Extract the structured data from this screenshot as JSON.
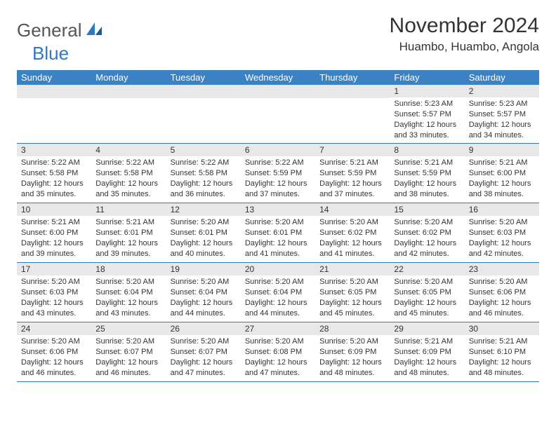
{
  "brand": {
    "part1": "General",
    "part2": "Blue"
  },
  "title": "November 2024",
  "location": "Huambo, Huambo, Angola",
  "colors": {
    "header_bg": "#3b82c4",
    "daynum_bg": "#e8e8e8",
    "border": "#2f79c2",
    "logo_blue": "#2f79c2"
  },
  "dayNames": [
    "Sunday",
    "Monday",
    "Tuesday",
    "Wednesday",
    "Thursday",
    "Friday",
    "Saturday"
  ],
  "weeks": [
    [
      {
        "blank": true
      },
      {
        "blank": true
      },
      {
        "blank": true
      },
      {
        "blank": true
      },
      {
        "blank": true
      },
      {
        "day": "1",
        "sunrise": "Sunrise: 5:23 AM",
        "sunset": "Sunset: 5:57 PM",
        "daylight": "Daylight: 12 hours and 33 minutes."
      },
      {
        "day": "2",
        "sunrise": "Sunrise: 5:23 AM",
        "sunset": "Sunset: 5:57 PM",
        "daylight": "Daylight: 12 hours and 34 minutes."
      }
    ],
    [
      {
        "day": "3",
        "sunrise": "Sunrise: 5:22 AM",
        "sunset": "Sunset: 5:58 PM",
        "daylight": "Daylight: 12 hours and 35 minutes."
      },
      {
        "day": "4",
        "sunrise": "Sunrise: 5:22 AM",
        "sunset": "Sunset: 5:58 PM",
        "daylight": "Daylight: 12 hours and 35 minutes."
      },
      {
        "day": "5",
        "sunrise": "Sunrise: 5:22 AM",
        "sunset": "Sunset: 5:58 PM",
        "daylight": "Daylight: 12 hours and 36 minutes."
      },
      {
        "day": "6",
        "sunrise": "Sunrise: 5:22 AM",
        "sunset": "Sunset: 5:59 PM",
        "daylight": "Daylight: 12 hours and 37 minutes."
      },
      {
        "day": "7",
        "sunrise": "Sunrise: 5:21 AM",
        "sunset": "Sunset: 5:59 PM",
        "daylight": "Daylight: 12 hours and 37 minutes."
      },
      {
        "day": "8",
        "sunrise": "Sunrise: 5:21 AM",
        "sunset": "Sunset: 5:59 PM",
        "daylight": "Daylight: 12 hours and 38 minutes."
      },
      {
        "day": "9",
        "sunrise": "Sunrise: 5:21 AM",
        "sunset": "Sunset: 6:00 PM",
        "daylight": "Daylight: 12 hours and 38 minutes."
      }
    ],
    [
      {
        "day": "10",
        "sunrise": "Sunrise: 5:21 AM",
        "sunset": "Sunset: 6:00 PM",
        "daylight": "Daylight: 12 hours and 39 minutes."
      },
      {
        "day": "11",
        "sunrise": "Sunrise: 5:21 AM",
        "sunset": "Sunset: 6:01 PM",
        "daylight": "Daylight: 12 hours and 39 minutes."
      },
      {
        "day": "12",
        "sunrise": "Sunrise: 5:20 AM",
        "sunset": "Sunset: 6:01 PM",
        "daylight": "Daylight: 12 hours and 40 minutes."
      },
      {
        "day": "13",
        "sunrise": "Sunrise: 5:20 AM",
        "sunset": "Sunset: 6:01 PM",
        "daylight": "Daylight: 12 hours and 41 minutes."
      },
      {
        "day": "14",
        "sunrise": "Sunrise: 5:20 AM",
        "sunset": "Sunset: 6:02 PM",
        "daylight": "Daylight: 12 hours and 41 minutes."
      },
      {
        "day": "15",
        "sunrise": "Sunrise: 5:20 AM",
        "sunset": "Sunset: 6:02 PM",
        "daylight": "Daylight: 12 hours and 42 minutes."
      },
      {
        "day": "16",
        "sunrise": "Sunrise: 5:20 AM",
        "sunset": "Sunset: 6:03 PM",
        "daylight": "Daylight: 12 hours and 42 minutes."
      }
    ],
    [
      {
        "day": "17",
        "sunrise": "Sunrise: 5:20 AM",
        "sunset": "Sunset: 6:03 PM",
        "daylight": "Daylight: 12 hours and 43 minutes."
      },
      {
        "day": "18",
        "sunrise": "Sunrise: 5:20 AM",
        "sunset": "Sunset: 6:04 PM",
        "daylight": "Daylight: 12 hours and 43 minutes."
      },
      {
        "day": "19",
        "sunrise": "Sunrise: 5:20 AM",
        "sunset": "Sunset: 6:04 PM",
        "daylight": "Daylight: 12 hours and 44 minutes."
      },
      {
        "day": "20",
        "sunrise": "Sunrise: 5:20 AM",
        "sunset": "Sunset: 6:04 PM",
        "daylight": "Daylight: 12 hours and 44 minutes."
      },
      {
        "day": "21",
        "sunrise": "Sunrise: 5:20 AM",
        "sunset": "Sunset: 6:05 PM",
        "daylight": "Daylight: 12 hours and 45 minutes."
      },
      {
        "day": "22",
        "sunrise": "Sunrise: 5:20 AM",
        "sunset": "Sunset: 6:05 PM",
        "daylight": "Daylight: 12 hours and 45 minutes."
      },
      {
        "day": "23",
        "sunrise": "Sunrise: 5:20 AM",
        "sunset": "Sunset: 6:06 PM",
        "daylight": "Daylight: 12 hours and 46 minutes."
      }
    ],
    [
      {
        "day": "24",
        "sunrise": "Sunrise: 5:20 AM",
        "sunset": "Sunset: 6:06 PM",
        "daylight": "Daylight: 12 hours and 46 minutes."
      },
      {
        "day": "25",
        "sunrise": "Sunrise: 5:20 AM",
        "sunset": "Sunset: 6:07 PM",
        "daylight": "Daylight: 12 hours and 46 minutes."
      },
      {
        "day": "26",
        "sunrise": "Sunrise: 5:20 AM",
        "sunset": "Sunset: 6:07 PM",
        "daylight": "Daylight: 12 hours and 47 minutes."
      },
      {
        "day": "27",
        "sunrise": "Sunrise: 5:20 AM",
        "sunset": "Sunset: 6:08 PM",
        "daylight": "Daylight: 12 hours and 47 minutes."
      },
      {
        "day": "28",
        "sunrise": "Sunrise: 5:20 AM",
        "sunset": "Sunset: 6:09 PM",
        "daylight": "Daylight: 12 hours and 48 minutes."
      },
      {
        "day": "29",
        "sunrise": "Sunrise: 5:21 AM",
        "sunset": "Sunset: 6:09 PM",
        "daylight": "Daylight: 12 hours and 48 minutes."
      },
      {
        "day": "30",
        "sunrise": "Sunrise: 5:21 AM",
        "sunset": "Sunset: 6:10 PM",
        "daylight": "Daylight: 12 hours and 48 minutes."
      }
    ]
  ]
}
